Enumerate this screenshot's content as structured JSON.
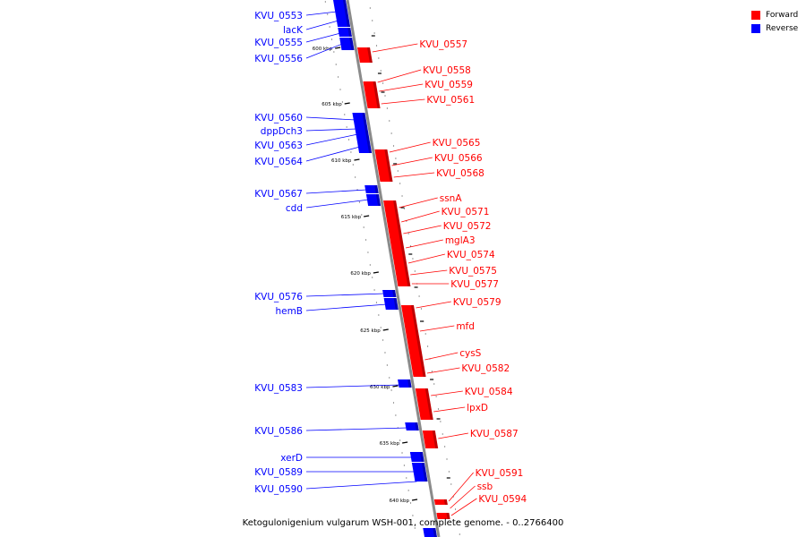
{
  "legend": {
    "forward_label": "Forward",
    "reverse_label": "Reverse",
    "forward_color": "#ff0000",
    "reverse_color": "#0000ff"
  },
  "caption": "Ketogulonigenium vulgarum WSH-001, complete genome. - 0..2766400",
  "ticks": [
    "600 kbp",
    "605 kbp",
    "610 kbp",
    "615 kbp",
    "620 kbp",
    "625 kbp",
    "630 kbp",
    "635 kbp",
    "640 kbp"
  ],
  "reverse_genes": [
    "KVU_0553",
    "lacK",
    "KVU_0555",
    "KVU_0556",
    "KVU_0560",
    "dppDch3",
    "KVU_0563",
    "KVU_0564",
    "KVU_0567",
    "cdd",
    "KVU_0576",
    "hemB",
    "KVU_0583",
    "KVU_0586",
    "xerD",
    "KVU_0589",
    "KVU_0590"
  ],
  "forward_genes": [
    "KVU_0557",
    "KVU_0558",
    "KVU_0559",
    "KVU_0561",
    "KVU_0565",
    "KVU_0566",
    "KVU_0568",
    "ssnA",
    "KVU_0571",
    "KVU_0572",
    "mglA3",
    "KVU_0574",
    "KVU_0575",
    "KVU_0577",
    "KVU_0579",
    "mfd",
    "cysS",
    "KVU_0582",
    "KVU_0584",
    "lpxD",
    "KVU_0587",
    "KVU_0591",
    "ssb",
    "KVU_0594"
  ]
}
